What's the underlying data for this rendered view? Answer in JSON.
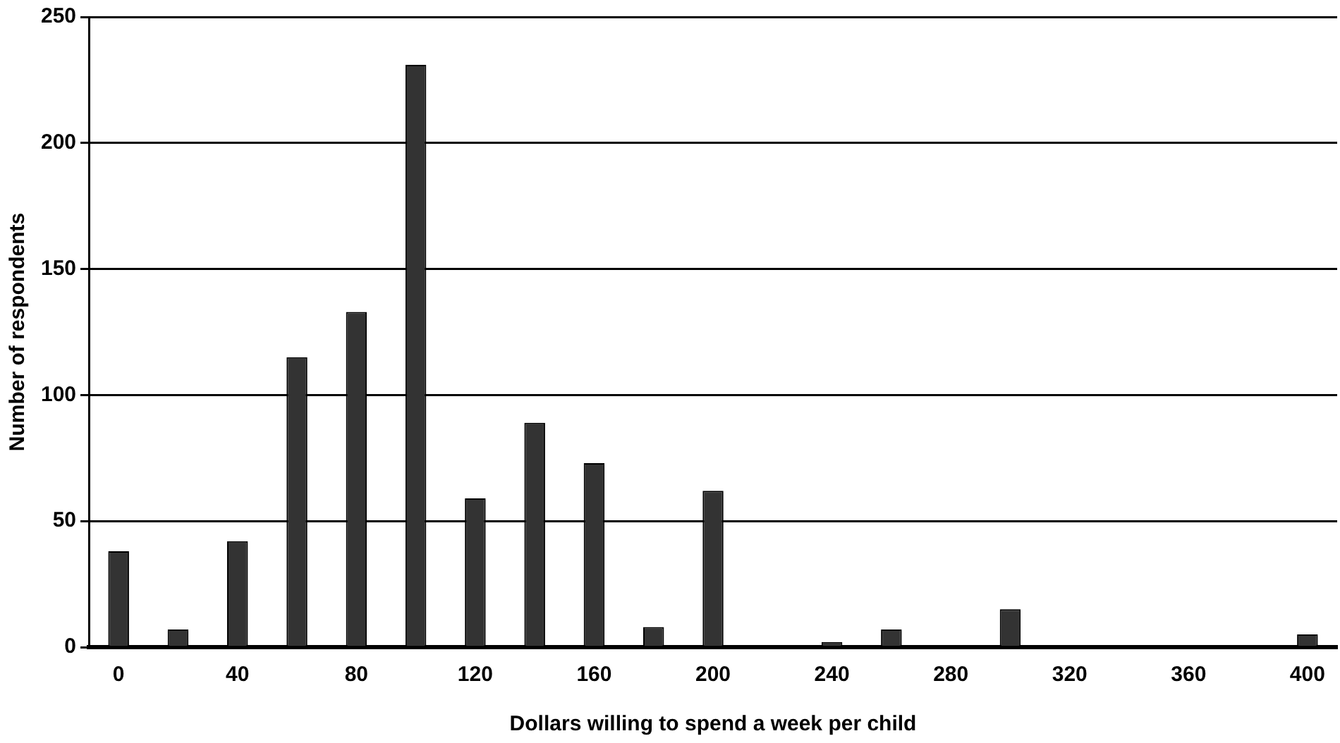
{
  "chart_data": {
    "type": "bar",
    "xlabel": "Dollars willing to spend a week per child",
    "ylabel": "Number of respondents",
    "categories": [
      "0",
      null,
      "40",
      null,
      "80",
      null,
      "120",
      null,
      "160",
      null,
      "200",
      null,
      "240",
      null,
      "280",
      null,
      "320",
      null,
      "360",
      null,
      "400"
    ],
    "values": [
      38,
      7,
      42,
      115,
      133,
      231,
      59,
      89,
      73,
      8,
      62,
      0,
      2,
      7,
      0,
      15,
      0,
      0,
      0,
      0,
      5
    ],
    "color": "#333333",
    "ylim": [
      0,
      250
    ],
    "yticks": [
      0,
      50,
      100,
      150,
      200,
      250
    ],
    "grid": "y",
    "legend": false
  }
}
